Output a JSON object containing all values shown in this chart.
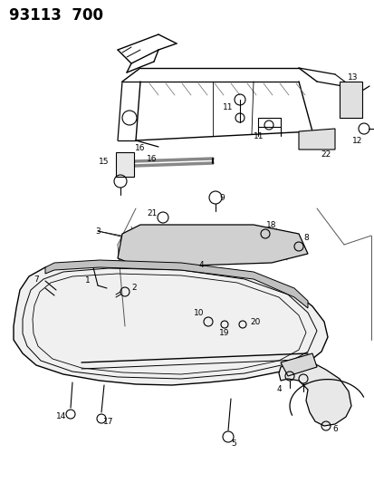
{
  "title": "93113  700",
  "bg_color": "#ffffff",
  "fig_width": 4.14,
  "fig_height": 5.33,
  "dpi": 100,
  "text_color": "#000000",
  "label_fontsize": 7.0,
  "title_fontsize": 12
}
